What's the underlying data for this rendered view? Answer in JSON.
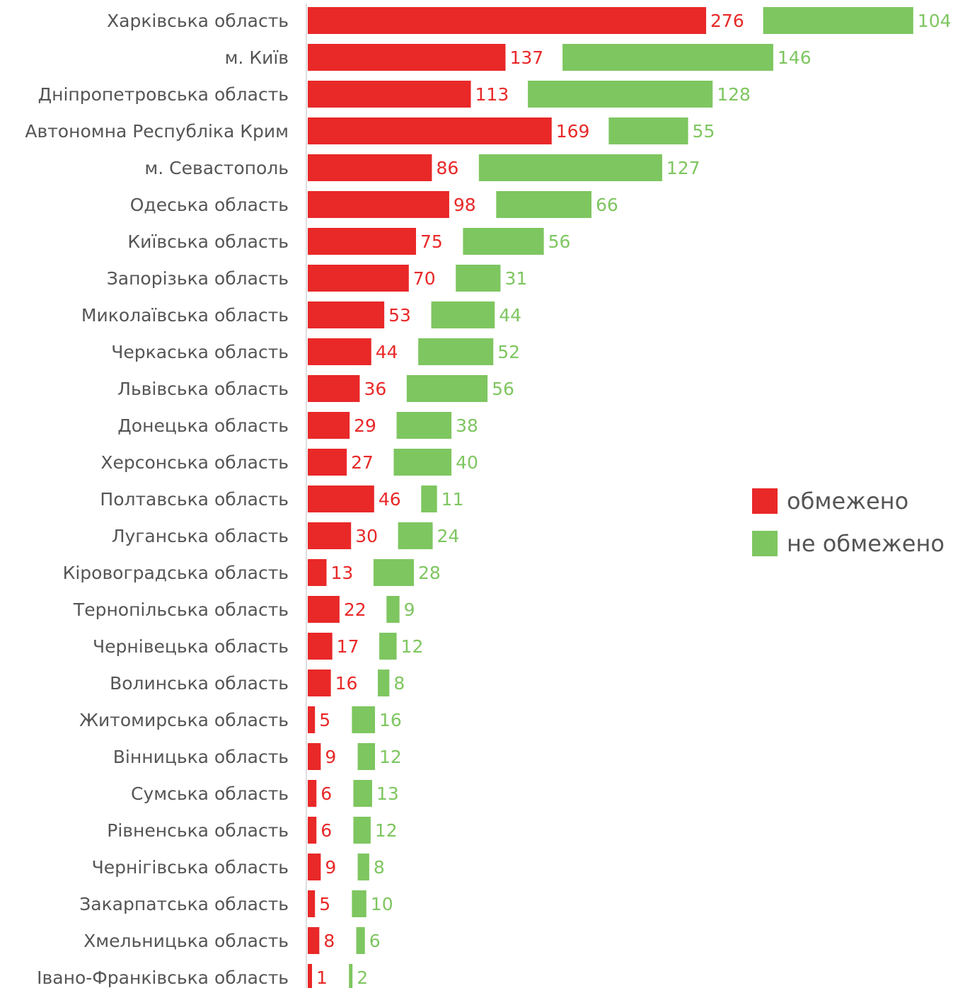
{
  "chart_data": {
    "type": "bar",
    "orientation": "horizontal",
    "layout": "offset-grouped",
    "grid": false,
    "legend_position": "right",
    "colors": {
      "обмежено": "#e92828",
      "не обмежено": "#7ec660"
    },
    "categories": [
      "Харківська область",
      "м. Київ",
      "Дніпропетровська область",
      "Автономна Республіка Крим",
      "м. Севастополь",
      "Одеська область",
      "Київська область",
      "Запорізька область",
      "Миколаївська область",
      "Черкаська область",
      "Львівська область",
      "Донецька область",
      "Херсонська область",
      "Полтавська область",
      "Луганська область",
      "Кіровоградська область",
      "Тернопільська область",
      "Чернівецька область",
      "Волинська область",
      "Житомирська область",
      "Вінницька область",
      "Сумська область",
      "Рівненська область",
      "Чернігівська область",
      "Закарпатська область",
      "Хмельницька область",
      "Івано-Франківська область"
    ],
    "series": [
      {
        "name": "обмежено",
        "values": [
          276,
          137,
          113,
          169,
          86,
          98,
          75,
          70,
          53,
          44,
          36,
          29,
          27,
          46,
          30,
          13,
          22,
          17,
          16,
          5,
          9,
          6,
          6,
          9,
          5,
          8,
          1
        ]
      },
      {
        "name": "не обмежено",
        "values": [
          104,
          146,
          128,
          55,
          127,
          66,
          56,
          31,
          44,
          52,
          56,
          38,
          40,
          11,
          24,
          28,
          9,
          12,
          8,
          16,
          12,
          13,
          12,
          8,
          10,
          6,
          2
        ]
      }
    ]
  }
}
